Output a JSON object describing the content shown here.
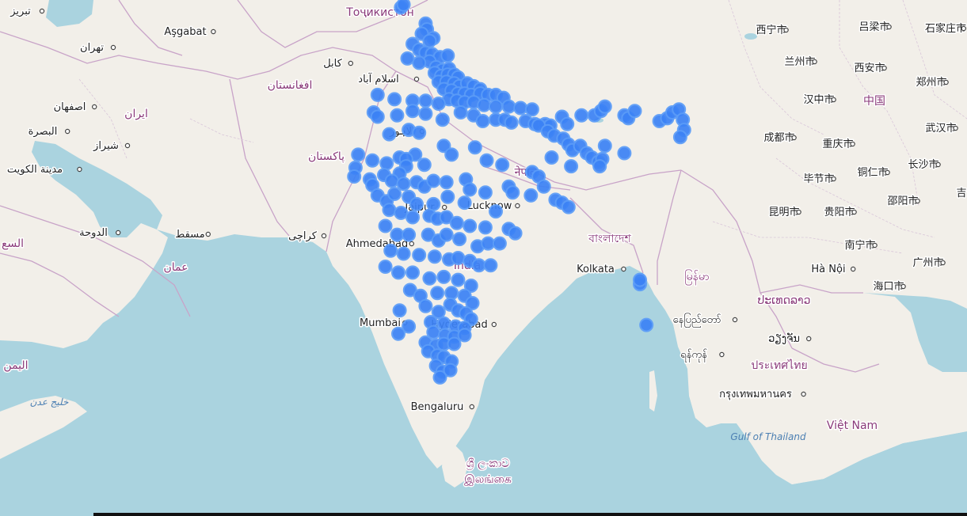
{
  "map": {
    "labels": [
      {
        "id": "tabriz",
        "text": "تبریز",
        "kind": "city"
      },
      {
        "id": "tehran",
        "text": "تهران",
        "kind": "city"
      },
      {
        "id": "isfahan",
        "text": "اصفهان",
        "kind": "city"
      },
      {
        "id": "iran",
        "text": "ایران",
        "kind": "country"
      },
      {
        "id": "basra",
        "text": "البصرة",
        "kind": "city"
      },
      {
        "id": "kuwait",
        "text": "مدينة الكويت",
        "kind": "city"
      },
      {
        "id": "shiraz",
        "text": "شیراز",
        "kind": "city"
      },
      {
        "id": "doha",
        "text": "الدوحة",
        "kind": "city"
      },
      {
        "id": "saudi",
        "text": "السع",
        "kind": "country"
      },
      {
        "id": "muscat",
        "text": "مسقط",
        "kind": "city"
      },
      {
        "id": "oman",
        "text": "عمان",
        "kind": "country"
      },
      {
        "id": "yemen",
        "text": "اليمن",
        "kind": "country"
      },
      {
        "id": "gulf-aden",
        "text": "خليج عدن",
        "kind": "sea"
      },
      {
        "id": "ashgabat",
        "text": "Aşgabat",
        "kind": "city"
      },
      {
        "id": "tajikistan",
        "text": "Тоҷикистон",
        "kind": "country"
      },
      {
        "id": "kabul",
        "text": "کابل",
        "kind": "city"
      },
      {
        "id": "afghanistan",
        "text": "افغانستان",
        "kind": "country"
      },
      {
        "id": "islamabad",
        "text": "اسلام آباد",
        "kind": "city"
      },
      {
        "id": "lahore",
        "text": "لاہور",
        "kind": "city"
      },
      {
        "id": "pakistan",
        "text": "پاکستان",
        "kind": "country"
      },
      {
        "id": "karachi",
        "text": "کراچی",
        "kind": "city"
      },
      {
        "id": "ahmedabad",
        "text": "Ahmedabad",
        "kind": "city"
      },
      {
        "id": "jaipur",
        "text": "Jaipur",
        "kind": "city"
      },
      {
        "id": "lucknow",
        "text": "Lucknow",
        "kind": "city"
      },
      {
        "id": "india",
        "text": "India",
        "kind": "country"
      },
      {
        "id": "nepal",
        "text": "नेपाल",
        "kind": "country"
      },
      {
        "id": "bangladesh",
        "text": "বাংলাদেশ",
        "kind": "country"
      },
      {
        "id": "kolkata",
        "text": "Kolkata",
        "kind": "city"
      },
      {
        "id": "mumbai",
        "text": "Mumbai",
        "kind": "city"
      },
      {
        "id": "hyderabad",
        "text": "Hyderabad",
        "kind": "city"
      },
      {
        "id": "bengaluru",
        "text": "Bengaluru",
        "kind": "city"
      },
      {
        "id": "srilanka-si",
        "text": "ශ්‍රී ලංකාව",
        "kind": "country"
      },
      {
        "id": "srilanka-ta",
        "text": "இலங்கை",
        "kind": "country"
      },
      {
        "id": "myanmar",
        "text": "မြန်မာ",
        "kind": "country"
      },
      {
        "id": "naypyidaw",
        "text": "နေပြည်တော်",
        "kind": "city"
      },
      {
        "id": "yangon",
        "text": "ရန်ကုန်",
        "kind": "city"
      },
      {
        "id": "laos",
        "text": "ປະເທດລາວ",
        "kind": "country"
      },
      {
        "id": "vientiane",
        "text": "ວຽງຈັນ",
        "kind": "city"
      },
      {
        "id": "thailand",
        "text": "ประเทศไทย",
        "kind": "country"
      },
      {
        "id": "bangkok",
        "text": "กรุงเทพมหานคร",
        "kind": "city"
      },
      {
        "id": "gulf-thailand",
        "text": "Gulf of Thailand",
        "kind": "sea"
      },
      {
        "id": "vietnam",
        "text": "Việt Nam",
        "kind": "country"
      },
      {
        "id": "hanoi",
        "text": "Hà Nội",
        "kind": "city"
      },
      {
        "id": "haikou",
        "text": "海口市",
        "kind": "city"
      },
      {
        "id": "china",
        "text": "中国",
        "kind": "country"
      },
      {
        "id": "xining",
        "text": "西宁市",
        "kind": "city"
      },
      {
        "id": "lanzhou",
        "text": "兰州市",
        "kind": "city"
      },
      {
        "id": "lvliang",
        "text": "吕梁市",
        "kind": "city"
      },
      {
        "id": "shijiazhuang",
        "text": "石家庄市",
        "kind": "city"
      },
      {
        "id": "xian",
        "text": "西安市",
        "kind": "city"
      },
      {
        "id": "zhengzhou",
        "text": "郑州市",
        "kind": "city"
      },
      {
        "id": "hanzhong",
        "text": "汉中市",
        "kind": "city"
      },
      {
        "id": "wuhan",
        "text": "武汉市",
        "kind": "city"
      },
      {
        "id": "chengdu",
        "text": "成都市",
        "kind": "city"
      },
      {
        "id": "chongqing",
        "text": "重庆市",
        "kind": "city"
      },
      {
        "id": "bijie",
        "text": "毕节市",
        "kind": "city"
      },
      {
        "id": "tongren",
        "text": "铜仁市",
        "kind": "city"
      },
      {
        "id": "changsha",
        "text": "长沙市",
        "kind": "city"
      },
      {
        "id": "kunming",
        "text": "昆明市",
        "kind": "city"
      },
      {
        "id": "guiyang",
        "text": "贵阳市",
        "kind": "city"
      },
      {
        "id": "shaoyang",
        "text": "邵阳市",
        "kind": "city"
      },
      {
        "id": "nanning",
        "text": "南宁市",
        "kind": "city"
      },
      {
        "id": "guangzhou",
        "text": "广州市",
        "kind": "city"
      },
      {
        "id": "ji",
        "text": "吉",
        "kind": "city"
      }
    ],
    "markers": [
      [
        27.7,
        34.0
      ],
      [
        27.9,
        34.2
      ],
      [
        29.6,
        32.9
      ],
      [
        29.7,
        32.5
      ],
      [
        29.3,
        32.2
      ],
      [
        30.2,
        31.9
      ],
      [
        29.9,
        31.7
      ],
      [
        28.6,
        31.5
      ],
      [
        29.1,
        31.1
      ],
      [
        29.6,
        30.9
      ],
      [
        30.1,
        30.8
      ],
      [
        30.7,
        30.6
      ],
      [
        31.3,
        30.7
      ],
      [
        29.9,
        30.3
      ],
      [
        29.1,
        30.2
      ],
      [
        28.2,
        30.5
      ],
      [
        30.4,
        29.9
      ],
      [
        30.9,
        29.7
      ],
      [
        31.4,
        29.8
      ],
      [
        30.3,
        29.5
      ],
      [
        30.8,
        29.3
      ],
      [
        31.3,
        29.4
      ],
      [
        31.8,
        29.4
      ],
      [
        32.1,
        29.2
      ],
      [
        30.6,
        28.9
      ],
      [
        31.2,
        28.9
      ],
      [
        31.8,
        28.8
      ],
      [
        32.2,
        28.6
      ],
      [
        32.8,
        28.8
      ],
      [
        33.3,
        28.6
      ],
      [
        33.8,
        28.4
      ],
      [
        31.0,
        28.4
      ],
      [
        31.6,
        28.3
      ],
      [
        32.1,
        28.1
      ],
      [
        32.6,
        28.1
      ],
      [
        33.1,
        28.0
      ],
      [
        33.8,
        28.1
      ],
      [
        34.4,
        28.0
      ],
      [
        35.0,
        28.0
      ],
      [
        35.6,
        27.8
      ],
      [
        31.4,
        27.7
      ],
      [
        32.0,
        27.6
      ],
      [
        32.6,
        27.5
      ],
      [
        33.3,
        27.5
      ],
      [
        34.1,
        27.3
      ],
      [
        35.0,
        27.2
      ],
      [
        36.0,
        27.2
      ],
      [
        36.9,
        27.1
      ],
      [
        37.8,
        27.0
      ],
      [
        25.9,
        28.0
      ],
      [
        27.2,
        27.7
      ],
      [
        28.6,
        27.6
      ],
      [
        29.6,
        27.6
      ],
      [
        30.6,
        27.4
      ],
      [
        25.6,
        26.8
      ],
      [
        25.9,
        26.5
      ],
      [
        27.4,
        26.6
      ],
      [
        28.6,
        26.9
      ],
      [
        29.6,
        26.7
      ],
      [
        30.9,
        26.3
      ],
      [
        32.3,
        26.8
      ],
      [
        33.3,
        26.6
      ],
      [
        34.0,
        26.2
      ],
      [
        35.0,
        26.3
      ],
      [
        35.7,
        26.3
      ],
      [
        36.2,
        26.1
      ],
      [
        37.3,
        26.2
      ],
      [
        38.0,
        26.0
      ],
      [
        38.8,
        26.0
      ],
      [
        39.2,
        25.9
      ],
      [
        40.1,
        26.5
      ],
      [
        40.5,
        26.0
      ],
      [
        41.6,
        26.6
      ],
      [
        42.6,
        26.6
      ],
      [
        43.1,
        26.9
      ],
      [
        43.4,
        27.2
      ],
      [
        44.9,
        26.6
      ],
      [
        45.2,
        26.4
      ],
      [
        45.7,
        26.9
      ],
      [
        47.6,
        26.2
      ],
      [
        48.2,
        26.4
      ],
      [
        48.6,
        26.8
      ],
      [
        49.1,
        27.0
      ],
      [
        49.4,
        26.3
      ],
      [
        49.5,
        25.6
      ],
      [
        49.2,
        25.1
      ],
      [
        26.8,
        25.3
      ],
      [
        28.3,
        25.6
      ],
      [
        29.1,
        25.4
      ],
      [
        38.3,
        25.9
      ],
      [
        39.0,
        25.5
      ],
      [
        39.5,
        25.2
      ],
      [
        40.2,
        25.0
      ],
      [
        40.6,
        24.6
      ],
      [
        40.9,
        24.2
      ],
      [
        41.5,
        24.5
      ],
      [
        42.0,
        24.0
      ],
      [
        42.4,
        23.7
      ],
      [
        42.9,
        23.4
      ],
      [
        43.2,
        23.6
      ],
      [
        43.0,
        23.1
      ],
      [
        43.4,
        24.5
      ],
      [
        44.9,
        24.0
      ],
      [
        24.4,
        23.9
      ],
      [
        24.2,
        23.0
      ],
      [
        25.5,
        23.5
      ],
      [
        26.6,
        23.3
      ],
      [
        27.6,
        23.7
      ],
      [
        28.8,
        23.9
      ],
      [
        29.5,
        23.2
      ],
      [
        31.0,
        24.5
      ],
      [
        31.6,
        23.9
      ],
      [
        33.4,
        24.4
      ],
      [
        34.3,
        23.5
      ],
      [
        35.5,
        23.2
      ],
      [
        37.8,
        22.7
      ],
      [
        38.3,
        22.4
      ],
      [
        39.3,
        23.7
      ],
      [
        40.8,
        23.1
      ],
      [
        24.1,
        22.4
      ],
      [
        25.3,
        22.2
      ],
      [
        25.5,
        21.8
      ],
      [
        26.4,
        22.5
      ],
      [
        28.1,
        23.6
      ],
      [
        28.1,
        23.1
      ],
      [
        27.6,
        22.6
      ],
      [
        27.0,
        22.1
      ],
      [
        27.9,
        21.9
      ],
      [
        28.9,
        22.0
      ],
      [
        29.5,
        21.7
      ],
      [
        30.2,
        22.1
      ],
      [
        31.2,
        22.0
      ],
      [
        32.7,
        22.2
      ],
      [
        33.0,
        21.5
      ],
      [
        34.2,
        21.3
      ],
      [
        36.0,
        21.7
      ],
      [
        36.3,
        21.3
      ],
      [
        37.7,
        21.1
      ],
      [
        38.7,
        21.7
      ],
      [
        39.6,
        20.8
      ],
      [
        40.1,
        20.6
      ],
      [
        40.6,
        20.3
      ],
      [
        25.9,
        21.1
      ],
      [
        26.6,
        20.7
      ],
      [
        27.2,
        21.2
      ],
      [
        28.3,
        21.0
      ],
      [
        28.9,
        20.5
      ],
      [
        30.2,
        20.5
      ],
      [
        31.3,
        21.0
      ],
      [
        32.6,
        20.6
      ],
      [
        35.0,
        20.0
      ],
      [
        26.8,
        20.1
      ],
      [
        27.7,
        19.9
      ],
      [
        28.6,
        19.6
      ],
      [
        29.9,
        19.7
      ],
      [
        30.5,
        19.5
      ],
      [
        31.2,
        19.6
      ],
      [
        32.0,
        19.2
      ],
      [
        33.0,
        19.0
      ],
      [
        34.2,
        18.9
      ],
      [
        36.0,
        18.8
      ],
      [
        36.5,
        18.5
      ],
      [
        26.5,
        19.0
      ],
      [
        27.4,
        18.4
      ],
      [
        28.3,
        18.4
      ],
      [
        29.8,
        18.4
      ],
      [
        30.6,
        18.0
      ],
      [
        31.2,
        18.4
      ],
      [
        32.2,
        18.1
      ],
      [
        33.6,
        17.6
      ],
      [
        34.4,
        17.8
      ],
      [
        35.3,
        17.8
      ],
      [
        26.9,
        17.3
      ],
      [
        27.9,
        17.1
      ],
      [
        29.1,
        17.0
      ],
      [
        30.3,
        16.9
      ],
      [
        31.4,
        16.7
      ],
      [
        32.1,
        16.8
      ],
      [
        33.0,
        16.6
      ],
      [
        33.7,
        16.3
      ],
      [
        34.6,
        16.3
      ],
      [
        26.5,
        16.2
      ],
      [
        27.5,
        15.8
      ],
      [
        28.6,
        15.8
      ],
      [
        29.9,
        15.4
      ],
      [
        31.0,
        15.5
      ],
      [
        32.1,
        15.3
      ],
      [
        33.1,
        14.9
      ],
      [
        28.4,
        14.6
      ],
      [
        29.2,
        14.2
      ],
      [
        30.5,
        14.4
      ],
      [
        31.6,
        14.4
      ],
      [
        32.6,
        14.2
      ],
      [
        33.2,
        13.7
      ],
      [
        27.6,
        13.2
      ],
      [
        29.6,
        13.5
      ],
      [
        30.6,
        13.1
      ],
      [
        31.5,
        13.6
      ],
      [
        32.1,
        13.2
      ],
      [
        32.7,
        13.0
      ],
      [
        33.1,
        12.6
      ],
      [
        30.0,
        12.4
      ],
      [
        31.0,
        12.3
      ],
      [
        31.9,
        12.1
      ],
      [
        32.6,
        12.0
      ],
      [
        28.3,
        12.1
      ],
      [
        30.2,
        11.7
      ],
      [
        31.1,
        11.5
      ],
      [
        31.8,
        11.4
      ],
      [
        32.6,
        11.5
      ],
      [
        29.6,
        11.0
      ],
      [
        30.4,
        10.8
      ],
      [
        31.0,
        10.9
      ],
      [
        31.8,
        10.9
      ],
      [
        29.8,
        10.4
      ],
      [
        30.5,
        10.1
      ],
      [
        31.0,
        10.0
      ],
      [
        31.6,
        9.7
      ],
      [
        30.4,
        9.4
      ],
      [
        30.9,
        9.0
      ],
      [
        31.5,
        9.1
      ],
      [
        30.7,
        8.6
      ],
      [
        27.5,
        11.6
      ],
      [
        46.6,
        12.2
      ],
      [
        46.1,
        15.0
      ],
      [
        46.1,
        15.3
      ]
    ]
  }
}
